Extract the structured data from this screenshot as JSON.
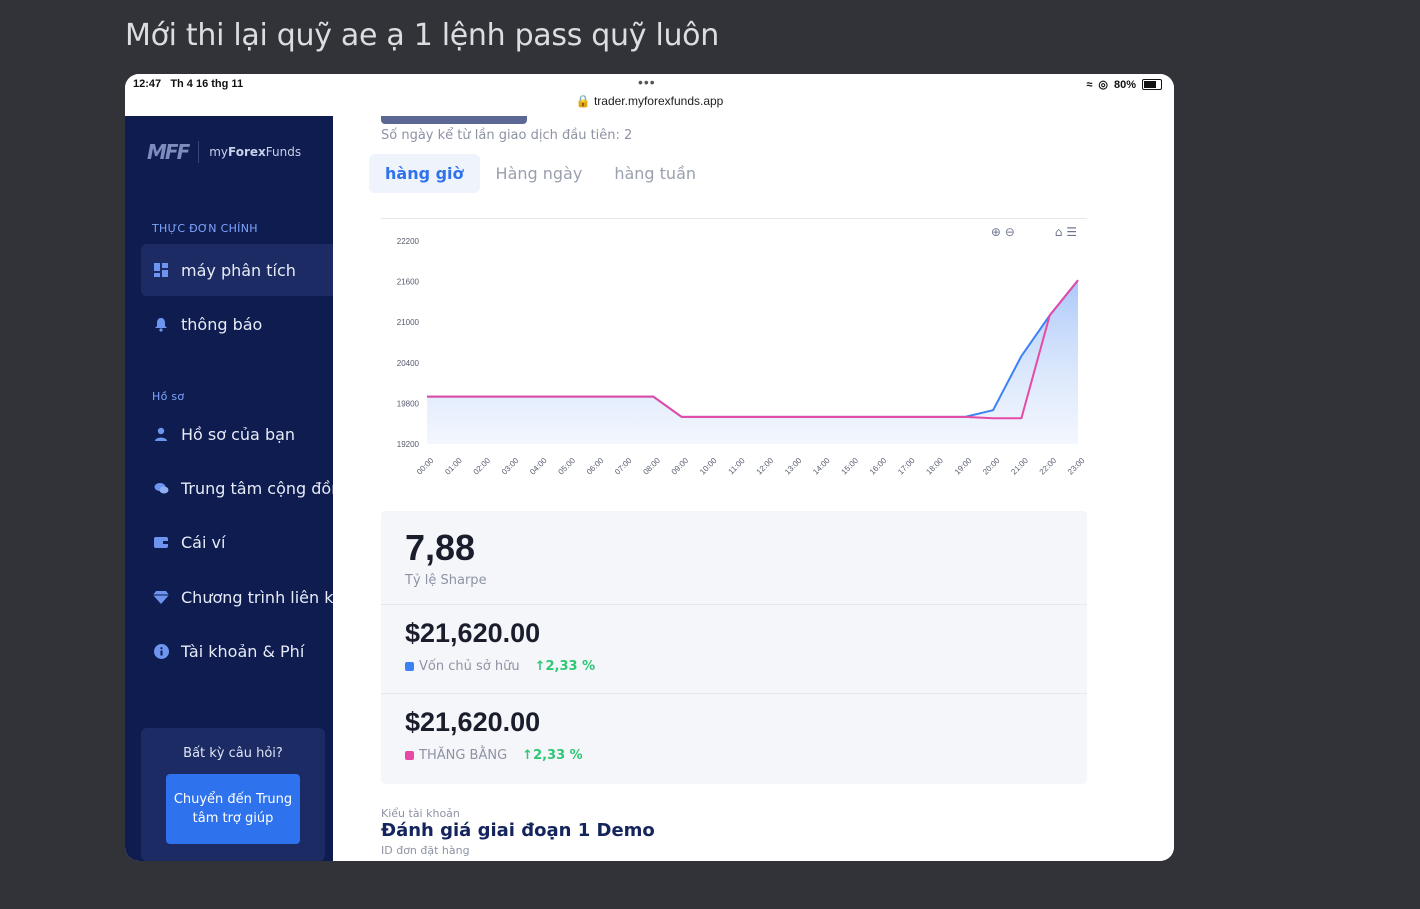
{
  "message": {
    "text": "Mới thi lại quỹ ae ạ 1 lệnh pass quỹ luôn"
  },
  "statusbar": {
    "time": "12:47",
    "date": "Th 4 16 thg 11",
    "dots": "•••",
    "url": "trader.myforexfunds.app",
    "battery": "80%"
  },
  "sidebar": {
    "logo_mark": "MFF",
    "logo_text_prefix": "my",
    "logo_text_bold": "Forex",
    "logo_text_suffix": "Funds",
    "main_menu_label": "THỰC ĐƠN CHÍNH",
    "profile_label": "Hồ sơ",
    "items": [
      {
        "label": "máy phân tích",
        "icon": "dashboard-icon"
      },
      {
        "label": "thông báo",
        "icon": "bell-icon"
      },
      {
        "label": "Hồ sơ của bạn",
        "icon": "user-icon"
      },
      {
        "label": "Trung tâm cộng đồng",
        "icon": "chat-icon"
      },
      {
        "label": "Cái ví",
        "icon": "wallet-icon"
      },
      {
        "label": "Chương trình liên kết",
        "icon": "diamond-icon"
      },
      {
        "label": "Tài khoản & Phí",
        "icon": "info-icon"
      }
    ],
    "help_question": "Bất kỳ câu hỏi?",
    "help_button": "Chuyển đến Trung tâm trợ giúp"
  },
  "main": {
    "days_text": "Số ngày kể từ lần giao dịch đầu tiên: 2",
    "tabs": [
      "hàng giờ",
      "Hàng ngày",
      "hàng tuần"
    ],
    "sharpe_value": "7,88",
    "sharpe_label": "Tỷ lệ Sharpe",
    "equity_value": "$21,620.00",
    "equity_label": "Vốn chủ sở hữu",
    "equity_change": "2,33 %",
    "balance_value": "$21,620.00",
    "balance_label": "THĂNG BẰNG",
    "balance_change": "2,33 %",
    "account_type_label": "Kiểu tài khoản",
    "account_type_value": "Đánh giá giai đoạn 1 Demo",
    "order_id_label": "ID đơn đặt hàng"
  },
  "colors": {
    "equity": "#3b82f6",
    "balance": "#e64aa6",
    "accent": "#2f72ee",
    "positive": "#2ec774",
    "sidebar_bg": "#0e1c4f"
  },
  "chart_data": {
    "type": "line",
    "categories": [
      "00:00",
      "01:00",
      "02:00",
      "03:00",
      "04:00",
      "05:00",
      "06:00",
      "07:00",
      "08:00",
      "09:00",
      "10:00",
      "11:00",
      "12:00",
      "13:00",
      "14:00",
      "15:00",
      "16:00",
      "17:00",
      "18:00",
      "19:00",
      "20:00",
      "21:00",
      "22:00",
      "23:00"
    ],
    "ylim": [
      19200,
      22200
    ],
    "yticks": [
      19200,
      19800,
      20400,
      21000,
      21600,
      22200
    ],
    "series": [
      {
        "values": [
          19900,
          19900,
          19900,
          19900,
          19900,
          19900,
          19900,
          19900,
          19900,
          19600,
          19600,
          19600,
          19600,
          19600,
          19600,
          19600,
          19600,
          19600,
          19600,
          19600,
          19700,
          20500,
          21100,
          21620
        ]
      },
      {
        "values": [
          19900,
          19900,
          19900,
          19900,
          19900,
          19900,
          19900,
          19900,
          19900,
          19600,
          19600,
          19600,
          19600,
          19600,
          19600,
          19600,
          19600,
          19600,
          19600,
          19600,
          19580,
          19580,
          21100,
          21620
        ]
      }
    ]
  }
}
